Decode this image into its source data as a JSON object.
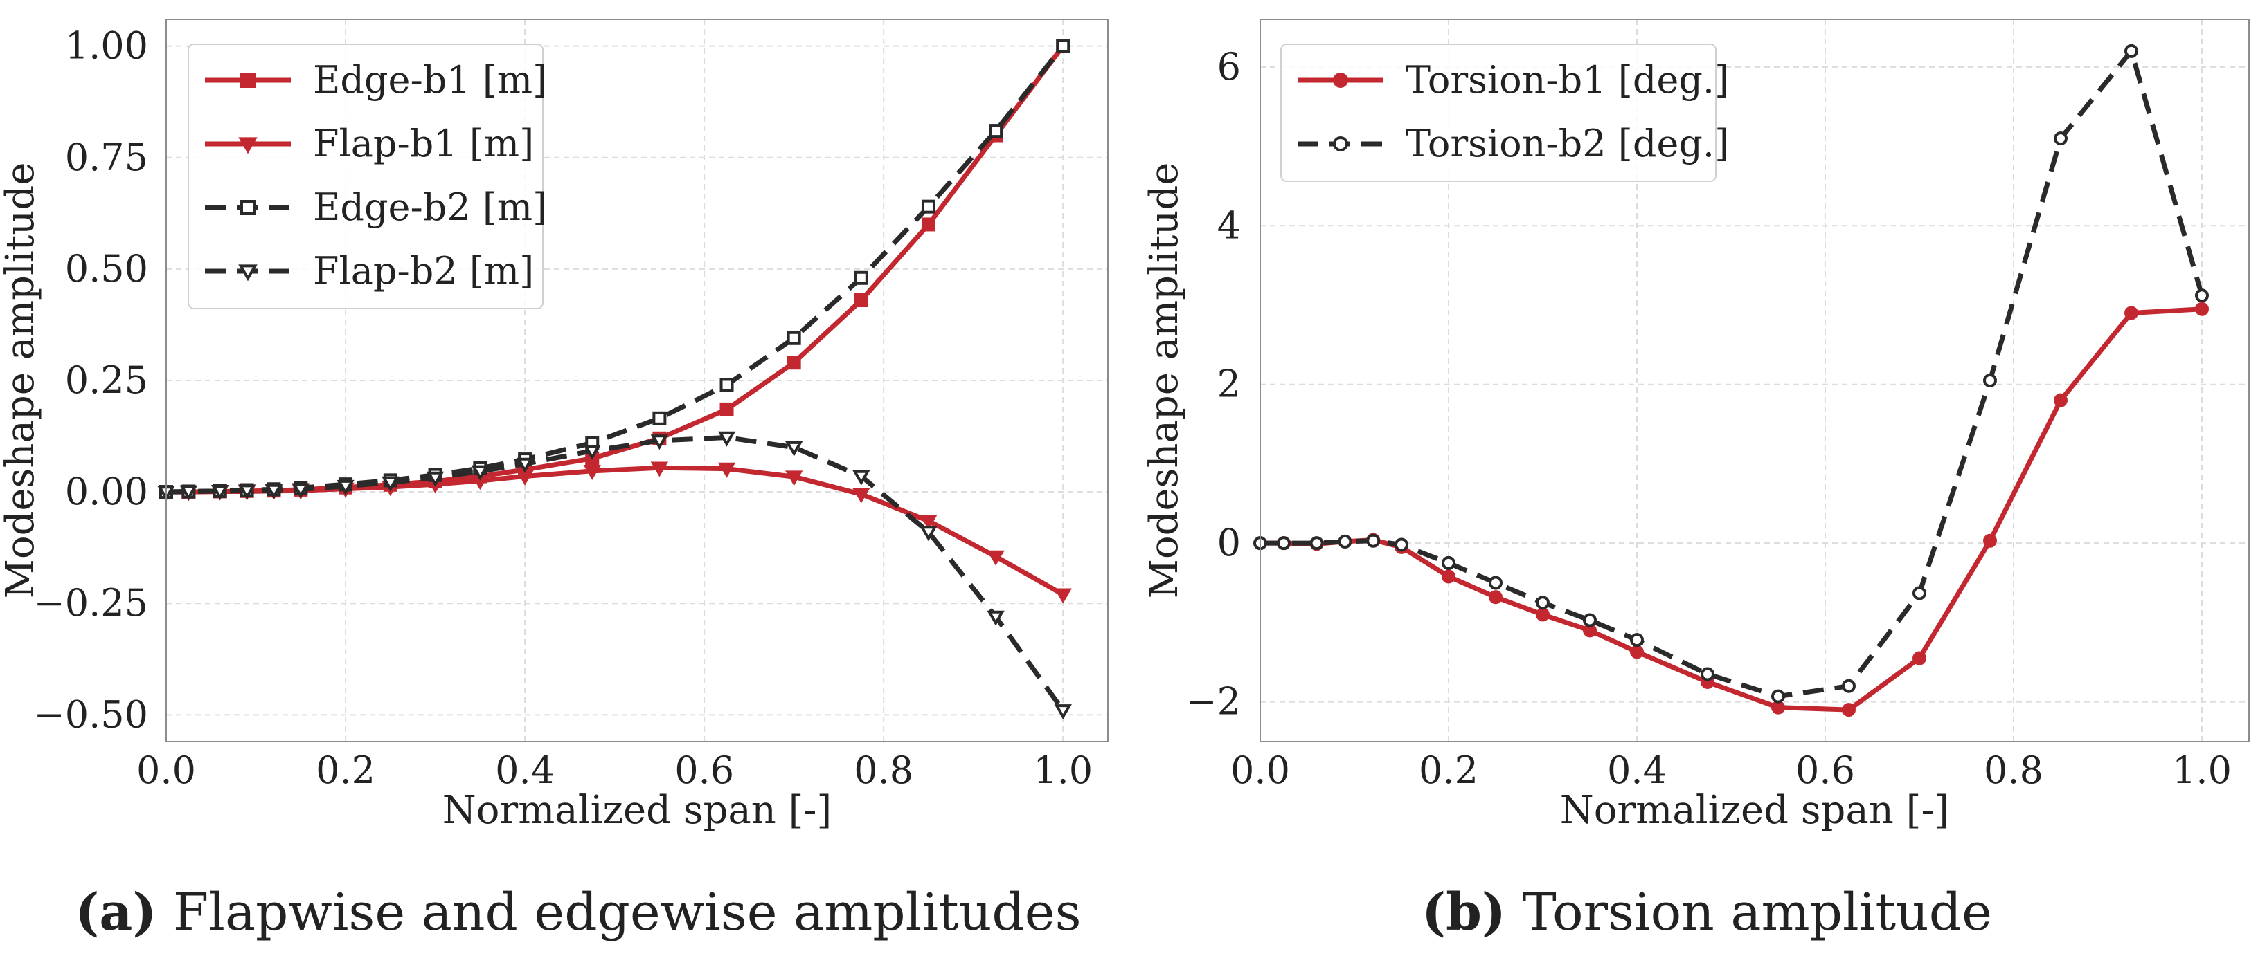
{
  "colors": {
    "red": "#c3272f",
    "dark": "#2a2a2a",
    "grid": "#dcdcdc",
    "frame": "#8c8c8c",
    "legend_border": "#d0d0d0"
  },
  "captions": [
    {
      "tag": "(a)",
      "text": " Flapwise and edgewise amplitudes"
    },
    {
      "tag": "(b)",
      "text": " Torsion amplitude"
    }
  ],
  "chart_data": [
    {
      "type": "line",
      "xlabel": "Normalized span [-]",
      "ylabel": "Modeshape amplitude",
      "xlim": [
        0.0,
        1.05
      ],
      "ylim": [
        -0.56,
        1.06
      ],
      "xticks": [
        0.0,
        0.2,
        0.4,
        0.6,
        0.8,
        1.0
      ],
      "xtick_labels": [
        "0.0",
        "0.2",
        "0.4",
        "0.6",
        "0.8",
        "1.0"
      ],
      "yticks": [
        1.0,
        0.75,
        0.5,
        0.25,
        0.0,
        -0.25,
        -0.5
      ],
      "ytick_labels": [
        "1.00",
        "0.75",
        "0.50",
        "0.25",
        "0.00",
        "−0.25",
        "−0.50"
      ],
      "grid": true,
      "legend_position": "top-left",
      "series": [
        {
          "name": "Edge-b1 [m]",
          "color": "#c3272f",
          "dash": "solid",
          "marker": "square-filled",
          "x": [
            0.0,
            0.025,
            0.06,
            0.09,
            0.12,
            0.15,
            0.2,
            0.25,
            0.3,
            0.35,
            0.4,
            0.475,
            0.55,
            0.625,
            0.7,
            0.775,
            0.85,
            0.925,
            1.0
          ],
          "y": [
            0.0,
            0.0,
            0.001,
            0.002,
            0.003,
            0.005,
            0.01,
            0.016,
            0.024,
            0.035,
            0.05,
            0.075,
            0.12,
            0.185,
            0.29,
            0.43,
            0.6,
            0.8,
            1.0
          ]
        },
        {
          "name": "Flap-b1 [m]",
          "color": "#c3272f",
          "dash": "solid",
          "marker": "triangle-down-filled",
          "x": [
            0.0,
            0.025,
            0.06,
            0.09,
            0.12,
            0.15,
            0.2,
            0.25,
            0.3,
            0.35,
            0.4,
            0.475,
            0.55,
            0.625,
            0.7,
            0.775,
            0.85,
            0.925,
            1.0
          ],
          "y": [
            0.0,
            0.0,
            0.001,
            0.001,
            0.002,
            0.003,
            0.007,
            0.011,
            0.017,
            0.025,
            0.035,
            0.047,
            0.054,
            0.052,
            0.034,
            -0.005,
            -0.065,
            -0.145,
            -0.23
          ]
        },
        {
          "name": "Edge-b2 [m]",
          "color": "#2a2a2a",
          "dash": "dashed",
          "marker": "square-open",
          "x": [
            0.0,
            0.025,
            0.06,
            0.09,
            0.12,
            0.15,
            0.2,
            0.25,
            0.3,
            0.35,
            0.4,
            0.475,
            0.55,
            0.625,
            0.7,
            0.775,
            0.85,
            0.925,
            1.0
          ],
          "y": [
            0.0,
            0.001,
            0.002,
            0.004,
            0.006,
            0.009,
            0.017,
            0.026,
            0.038,
            0.053,
            0.073,
            0.11,
            0.165,
            0.24,
            0.345,
            0.48,
            0.64,
            0.81,
            1.0
          ]
        },
        {
          "name": "Flap-b2 [m]",
          "color": "#2a2a2a",
          "dash": "dashed",
          "marker": "triangle-down-open",
          "x": [
            0.0,
            0.025,
            0.06,
            0.09,
            0.12,
            0.15,
            0.2,
            0.25,
            0.3,
            0.35,
            0.4,
            0.475,
            0.55,
            0.625,
            0.7,
            0.775,
            0.85,
            0.925,
            1.0
          ],
          "y": [
            0.0,
            0.001,
            0.002,
            0.003,
            0.004,
            0.006,
            0.013,
            0.021,
            0.032,
            0.046,
            0.063,
            0.092,
            0.115,
            0.122,
            0.1,
            0.035,
            -0.09,
            -0.28,
            -0.49
          ]
        }
      ]
    },
    {
      "type": "line",
      "xlabel": "Normalized span [-]",
      "ylabel": "Modeshape amplitude",
      "xlim": [
        0.0,
        1.05
      ],
      "ylim": [
        -2.5,
        6.6
      ],
      "xticks": [
        0.0,
        0.2,
        0.4,
        0.6,
        0.8,
        1.0
      ],
      "xtick_labels": [
        "0.0",
        "0.2",
        "0.4",
        "0.6",
        "0.8",
        "1.0"
      ],
      "yticks": [
        6,
        4,
        2,
        0,
        -2
      ],
      "ytick_labels": [
        "6",
        "4",
        "2",
        "0",
        "−2"
      ],
      "grid": true,
      "legend_position": "top-left",
      "series": [
        {
          "name": "Torsion-b1 [deg.]",
          "color": "#c3272f",
          "dash": "solid",
          "marker": "circle-filled",
          "x": [
            0.0,
            0.025,
            0.06,
            0.09,
            0.12,
            0.15,
            0.2,
            0.25,
            0.3,
            0.35,
            0.4,
            0.475,
            0.55,
            0.625,
            0.7,
            0.775,
            0.85,
            0.925,
            1.0
          ],
          "y": [
            0.0,
            0.0,
            -0.01,
            0.02,
            0.04,
            -0.05,
            -0.42,
            -0.68,
            -0.9,
            -1.1,
            -1.37,
            -1.75,
            -2.07,
            -2.1,
            -1.45,
            0.03,
            1.8,
            2.9,
            2.95
          ]
        },
        {
          "name": "Torsion-b2 [deg.]",
          "color": "#2a2a2a",
          "dash": "dashed",
          "marker": "circle-open",
          "x": [
            0.0,
            0.025,
            0.06,
            0.09,
            0.12,
            0.15,
            0.2,
            0.25,
            0.3,
            0.35,
            0.4,
            0.475,
            0.55,
            0.625,
            0.7,
            0.775,
            0.85,
            0.925,
            1.0
          ],
          "y": [
            0.0,
            0.0,
            0.0,
            0.02,
            0.03,
            -0.02,
            -0.25,
            -0.5,
            -0.75,
            -0.97,
            -1.22,
            -1.65,
            -1.93,
            -1.8,
            -0.63,
            2.05,
            5.1,
            6.2,
            3.12
          ]
        }
      ]
    }
  ]
}
